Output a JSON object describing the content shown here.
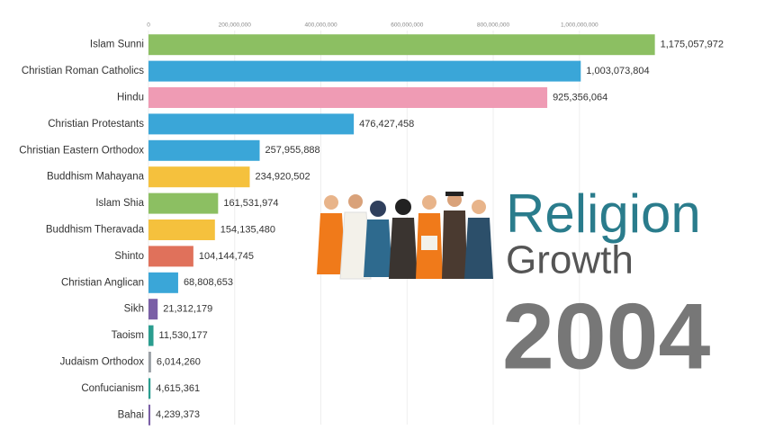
{
  "chart_data": {
    "type": "bar",
    "orientation": "horizontal",
    "title": "Religion",
    "subtitle": "Growth",
    "year": "2004",
    "categories": [
      "Islam Sunni",
      "Christian Roman Catholics",
      "Hindu",
      "Christian Protestants",
      "Christian Eastern Orthodox",
      "Buddhism Mahayana",
      "Islam Shia",
      "Buddhism Theravada",
      "Shinto",
      "Christian Anglican",
      "Sikh",
      "Taoism",
      "Judaism Orthodox",
      "Confucianism",
      "Bahai"
    ],
    "values": [
      1175057972,
      1003073804,
      925356064,
      476427458,
      257955888,
      234920502,
      161531974,
      154135480,
      104144745,
      68808653,
      21312179,
      11530177,
      6014260,
      4615361,
      4239373
    ],
    "value_labels": [
      "1,175,057,972",
      "1,003,073,804",
      "925,356,064",
      "476,427,458",
      "257,955,888",
      "234,920,502",
      "161,531,974",
      "154,135,480",
      "104,144,745",
      "68,808,653",
      "21,312,179",
      "11,530,177",
      "6,014,260",
      "4,615,361",
      "4,239,373"
    ],
    "colors": [
      "#8cbf62",
      "#3aa6d8",
      "#ef9bb4",
      "#3aa6d8",
      "#3aa6d8",
      "#f5c13d",
      "#8cbf62",
      "#f5c13d",
      "#e0715b",
      "#3aa6d8",
      "#7a5fa6",
      "#2a9d8f",
      "#9aa0a6",
      "#2a9d8f",
      "#7a5fa6"
    ],
    "xlim": [
      0,
      1180000000
    ],
    "xticks": [
      0,
      {
        "value": 200000000,
        "label": "200,000,000"
      },
      {
        "value": 400000000,
        "label": "400,000,000"
      },
      {
        "value": 600000000,
        "label": "600,000,000"
      },
      {
        "value": 800000000,
        "label": "800,000,000"
      },
      {
        "value": 1000000000,
        "label": "1,000,000,000"
      }
    ],
    "grid": true
  }
}
